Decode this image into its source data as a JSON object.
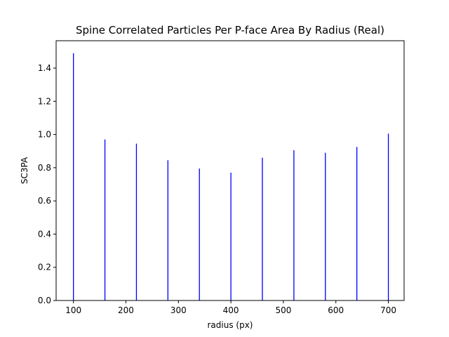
{
  "chart_data": {
    "type": "bar",
    "title": "Spine Correlated Particles Per P-face Area By Radius (Real)",
    "xlabel": "radius (px)",
    "ylabel": "SC3PA",
    "x": [
      100,
      160,
      220,
      280,
      340,
      400,
      460,
      520,
      580,
      640,
      700
    ],
    "values": [
      1.49,
      0.97,
      0.945,
      0.845,
      0.795,
      0.77,
      0.86,
      0.905,
      0.89,
      0.925,
      1.005
    ],
    "xlim": [
      67,
      730
    ],
    "ylim": [
      0,
      1.565
    ],
    "xticks": [
      100,
      200,
      300,
      400,
      500,
      600,
      700
    ],
    "xtick_labels": [
      "100",
      "200",
      "300",
      "400",
      "500",
      "600",
      "700"
    ],
    "yticks": [
      0.0,
      0.2,
      0.4,
      0.6,
      0.8,
      1.0,
      1.2,
      1.4
    ],
    "ytick_labels": [
      "0.0",
      "0.2",
      "0.4",
      "0.6",
      "0.8",
      "1.0",
      "1.2",
      "1.4"
    ],
    "bar_color": "#0000ff",
    "grid": false,
    "legend": "none"
  }
}
